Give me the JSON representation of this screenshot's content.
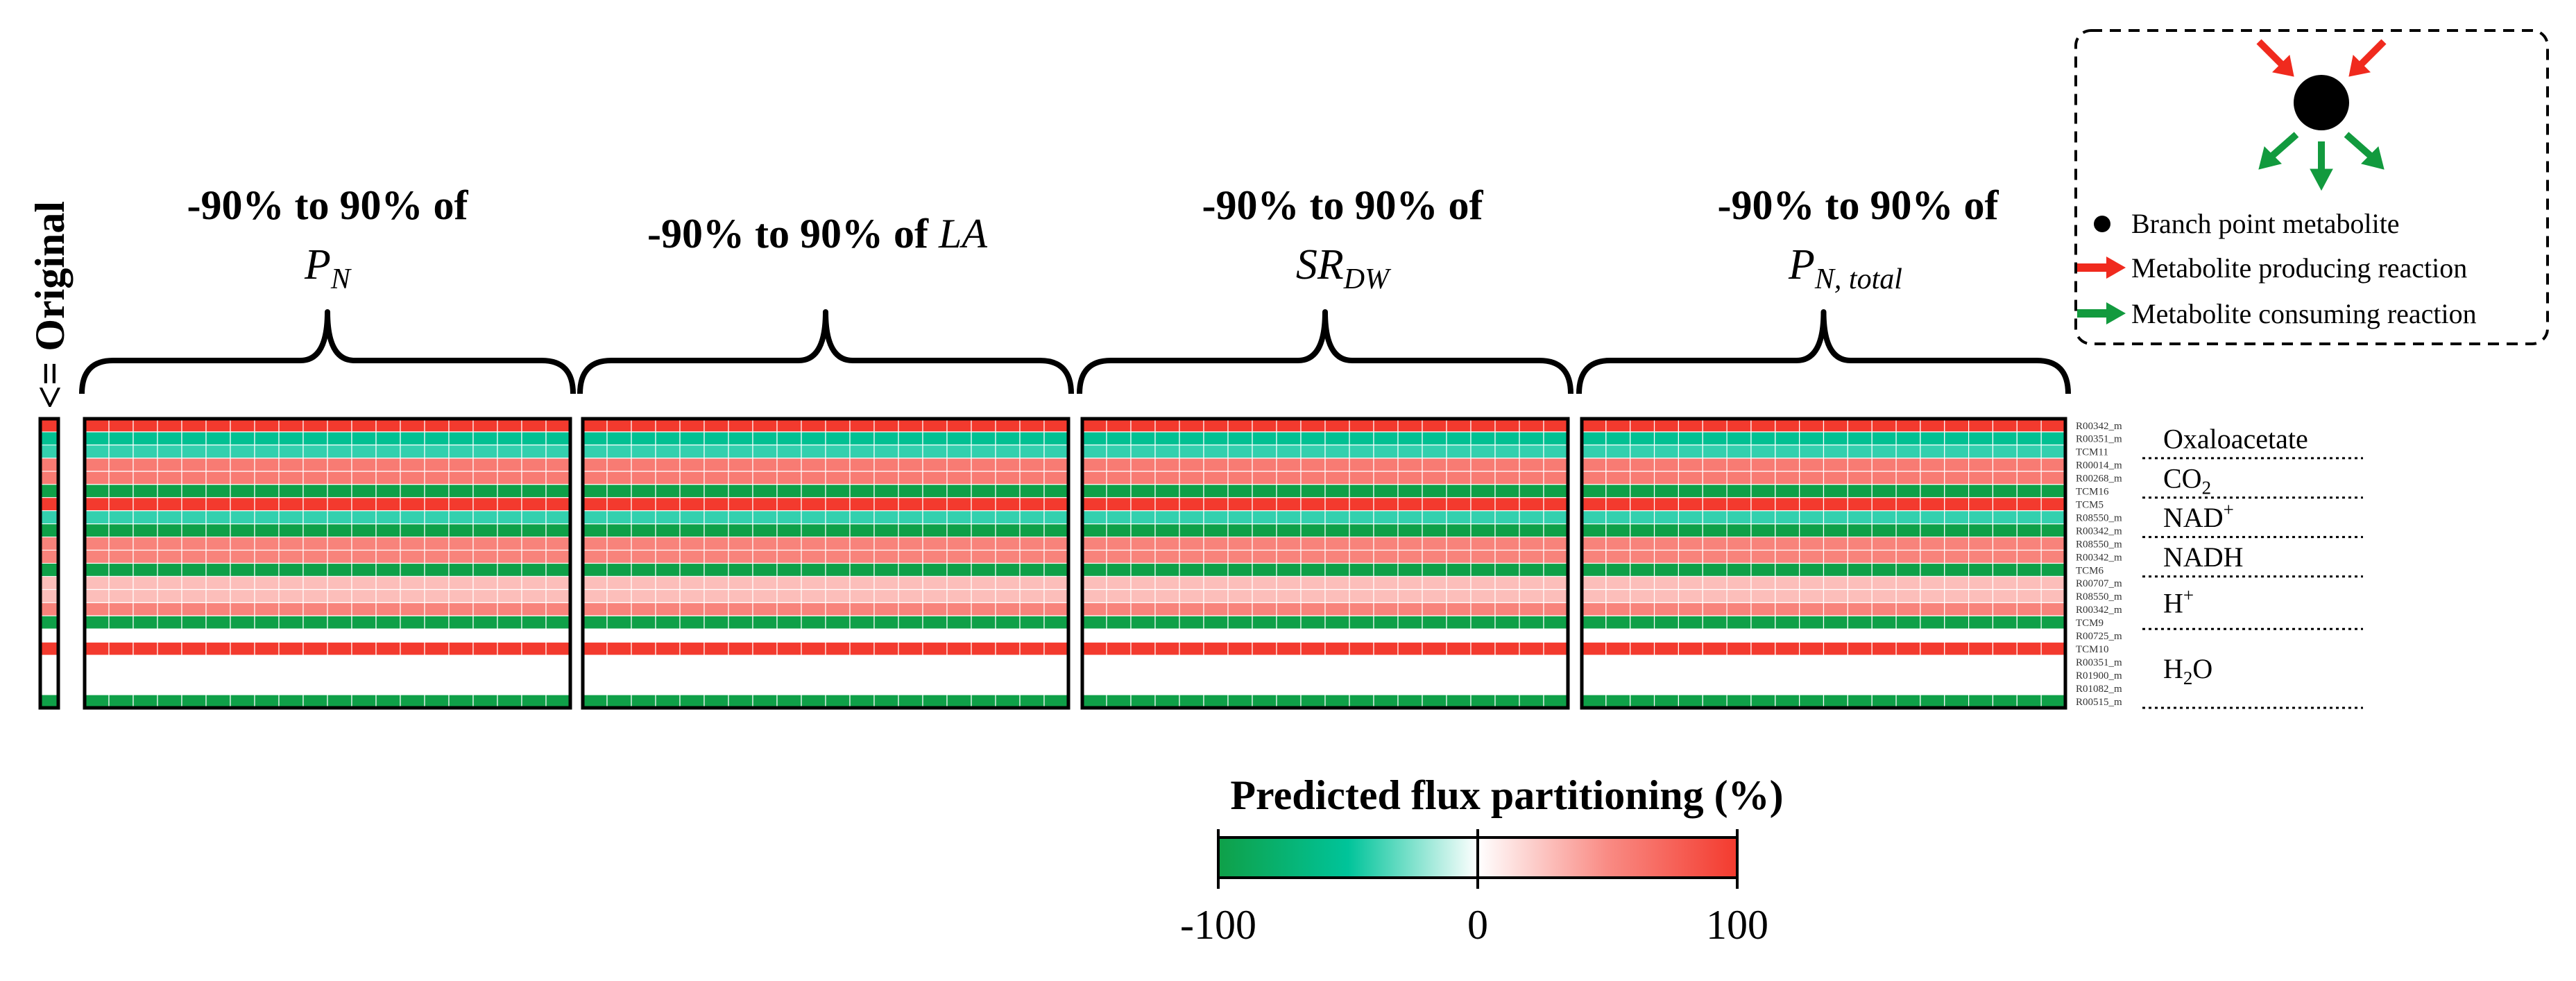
{
  "chart_data": {
    "type": "heatmap",
    "title": "Predicted flux partitioning (%)",
    "original_label": "<= Original",
    "colorbar": {
      "min": -100,
      "max": 100,
      "tick_labels": [
        "-100",
        "0",
        "100"
      ],
      "colors": {
        "neg_end": "#0fa048",
        "neg_mid": "#00c49a",
        "zero": "#ffffff",
        "pos_mid": "#f98b84",
        "pos_end": "#f33a2e"
      }
    },
    "panels": [
      {
        "pre": "-90% to 90% of",
        "sym": "P",
        "sub": "N"
      },
      {
        "pre": "-90% to 90% of",
        "sym": "LA",
        "sub": ""
      },
      {
        "pre": "-90% to 90% of",
        "sym": "SR",
        "sub": "DW"
      },
      {
        "pre": "-90% to 90% of",
        "sym": "P",
        "sub": "N, total"
      }
    ],
    "columns_per_panel": 20,
    "rows": [
      {
        "reaction": "R00342_m",
        "value": 100
      },
      {
        "reaction": "R00351_m",
        "value": -55
      },
      {
        "reaction": "TCM11",
        "value": -40
      },
      {
        "reaction": "R00014_m",
        "value": 60
      },
      {
        "reaction": "R00268_m",
        "value": 60
      },
      {
        "reaction": "TCM16",
        "value": -100
      },
      {
        "reaction": "TCM5",
        "value": 100
      },
      {
        "reaction": "R08550_m",
        "value": -40
      },
      {
        "reaction": "R00342_m",
        "value": -100
      },
      {
        "reaction": "R08550_m",
        "value": 55
      },
      {
        "reaction": "R00342_m",
        "value": 55
      },
      {
        "reaction": "TCM6",
        "value": -100
      },
      {
        "reaction": "R00707_m",
        "value": 28
      },
      {
        "reaction": "R08550_m",
        "value": 28
      },
      {
        "reaction": "R00342_m",
        "value": 55
      },
      {
        "reaction": "TCM9",
        "value": -100
      },
      {
        "reaction": "R00725_m",
        "value": 0
      },
      {
        "reaction": "TCM10",
        "value": 100
      },
      {
        "reaction": "R00351_m",
        "value": 0
      },
      {
        "reaction": "R01900_m",
        "value": 0
      },
      {
        "reaction": "R01082_m",
        "value": 0
      },
      {
        "reaction": "R00515_m",
        "value": -100
      }
    ],
    "metabolite_groups": [
      {
        "name": "Oxaloacetate",
        "sub": "",
        "sup": "",
        "rows": [
          0,
          2
        ]
      },
      {
        "name": "CO",
        "sub": "2",
        "sup": "",
        "rows": [
          3,
          5
        ]
      },
      {
        "name": "NAD",
        "sub": "",
        "sup": "+",
        "rows": [
          6,
          8
        ]
      },
      {
        "name": "NADH",
        "sub": "",
        "sup": "",
        "rows": [
          9,
          11
        ]
      },
      {
        "name": "H",
        "sub": "",
        "sup": "+",
        "rows": [
          12,
          15
        ]
      },
      {
        "name": "H",
        "sub": "2",
        "sup": "",
        "name_tail": "O",
        "rows": [
          16,
          21
        ]
      }
    ],
    "legend": {
      "items": [
        {
          "label": "Branch point metabolite",
          "symbol": "circle",
          "color": "#000000"
        },
        {
          "label": "Metabolite producing reaction",
          "symbol": "arrow",
          "color": "#f02a1e"
        },
        {
          "label": "Metabolite consuming reaction",
          "symbol": "arrow",
          "color": "#129a3e"
        }
      ]
    }
  }
}
